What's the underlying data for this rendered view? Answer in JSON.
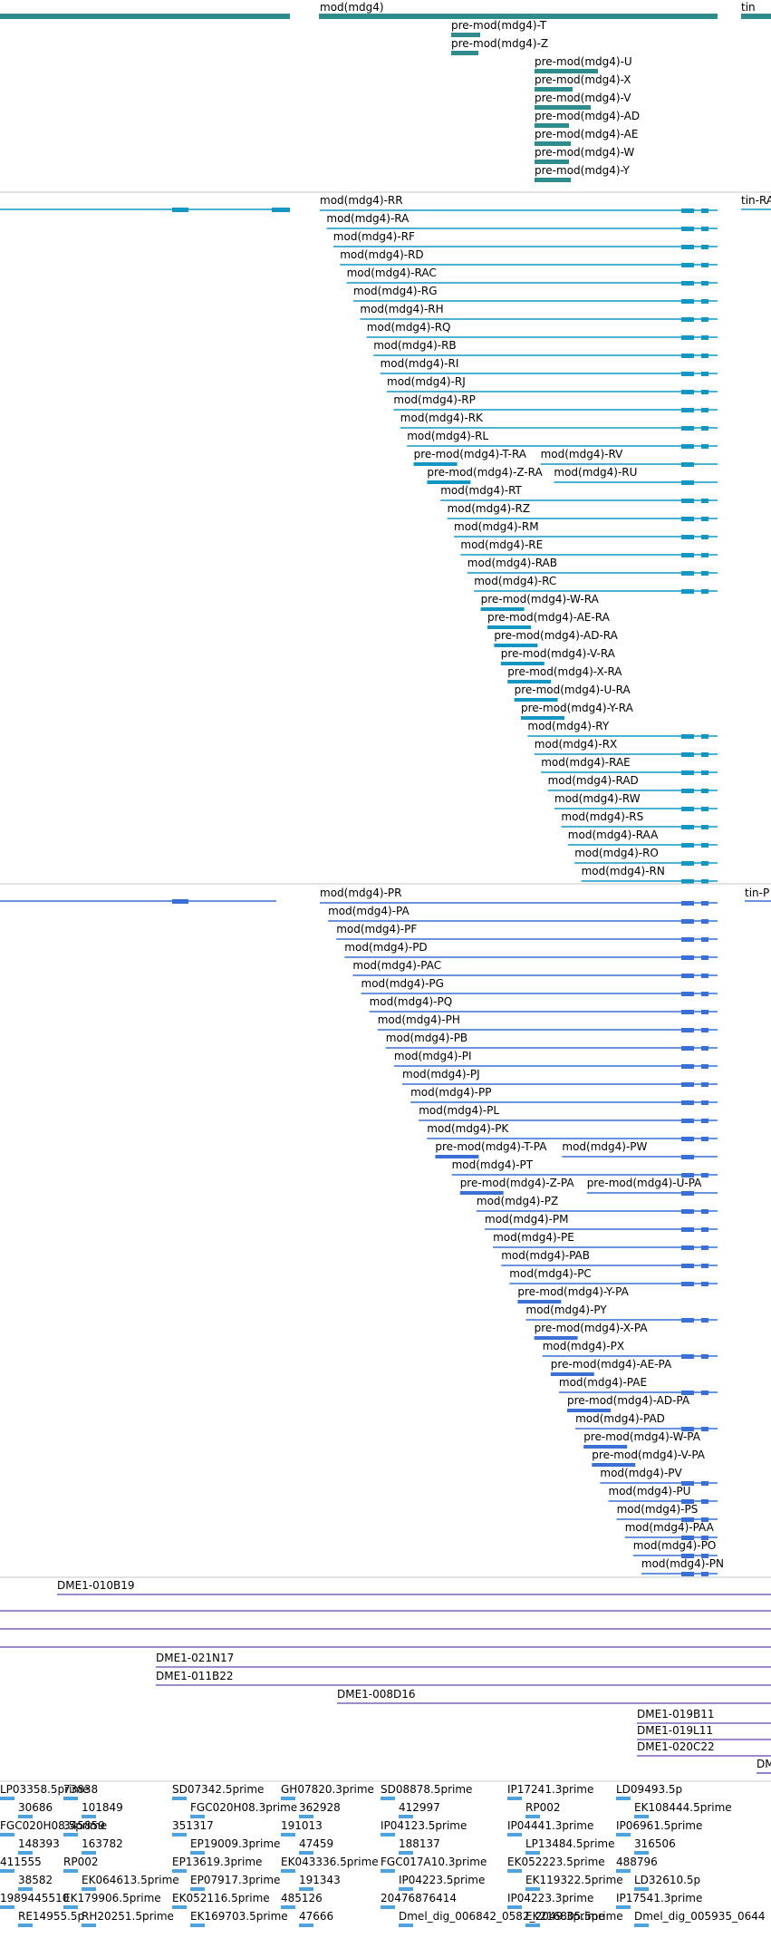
{
  "track_colors": {
    "gene": "#2e8b8e",
    "mrna": "#1297c3",
    "protein": "#3a6fd6",
    "clone": "#7b63b8",
    "est": "#4ea3dc",
    "divider": "#c8c8c8"
  },
  "gene_track": {
    "gene_label": "mod(mdg4)",
    "neighbor_label": "tin",
    "transcripts": [
      "pre-mod(mdg4)-T",
      "pre-mod(mdg4)-Z",
      "pre-mod(mdg4)-U",
      "pre-mod(mdg4)-X",
      "pre-mod(mdg4)-V",
      "pre-mod(mdg4)-AD",
      "pre-mod(mdg4)-AE",
      "pre-mod(mdg4)-W",
      "pre-mod(mdg4)-Y"
    ]
  },
  "mrna_track": {
    "neighbor_label": "tin-RA",
    "labels": [
      "mod(mdg4)-RR",
      "mod(mdg4)-RA",
      "mod(mdg4)-RF",
      "mod(mdg4)-RD",
      "mod(mdg4)-RAC",
      "mod(mdg4)-RG",
      "mod(mdg4)-RH",
      "mod(mdg4)-RQ",
      "mod(mdg4)-RB",
      "mod(mdg4)-RI",
      "mod(mdg4)-RJ",
      "mod(mdg4)-RP",
      "mod(mdg4)-RK",
      "mod(mdg4)-RL",
      "pre-mod(mdg4)-T-RA",
      "mod(mdg4)-RV",
      "pre-mod(mdg4)-Z-RA",
      "mod(mdg4)-RU",
      "mod(mdg4)-RT",
      "mod(mdg4)-RZ",
      "mod(mdg4)-RM",
      "mod(mdg4)-RE",
      "mod(mdg4)-RAB",
      "mod(mdg4)-RC",
      "pre-mod(mdg4)-W-RA",
      "pre-mod(mdg4)-AE-RA",
      "pre-mod(mdg4)-AD-RA",
      "pre-mod(mdg4)-V-RA",
      "pre-mod(mdg4)-X-RA",
      "pre-mod(mdg4)-U-RA",
      "pre-mod(mdg4)-Y-RA",
      "mod(mdg4)-RY",
      "mod(mdg4)-RX",
      "mod(mdg4)-RAE",
      "mod(mdg4)-RAD",
      "mod(mdg4)-RW",
      "mod(mdg4)-RS",
      "mod(mdg4)-RAA",
      "mod(mdg4)-RO",
      "mod(mdg4)-RN"
    ]
  },
  "protein_track": {
    "neighbor_label": "tin-P",
    "labels": [
      "mod(mdg4)-PR",
      "mod(mdg4)-PA",
      "mod(mdg4)-PF",
      "mod(mdg4)-PD",
      "mod(mdg4)-PAC",
      "mod(mdg4)-PG",
      "mod(mdg4)-PQ",
      "mod(mdg4)-PH",
      "mod(mdg4)-PB",
      "mod(mdg4)-PI",
      "mod(mdg4)-PJ",
      "mod(mdg4)-PP",
      "mod(mdg4)-PL",
      "mod(mdg4)-PK",
      "pre-mod(mdg4)-T-PA",
      "mod(mdg4)-PW",
      "mod(mdg4)-PT",
      "pre-mod(mdg4)-Z-PA",
      "pre-mod(mdg4)-U-PA",
      "mod(mdg4)-PZ",
      "mod(mdg4)-PM",
      "mod(mdg4)-PE",
      "mod(mdg4)-PAB",
      "mod(mdg4)-PC",
      "pre-mod(mdg4)-Y-PA",
      "mod(mdg4)-PY",
      "pre-mod(mdg4)-X-PA",
      "mod(mdg4)-PX",
      "pre-mod(mdg4)-AE-PA",
      "mod(mdg4)-PAE",
      "pre-mod(mdg4)-AD-PA",
      "mod(mdg4)-PAD",
      "pre-mod(mdg4)-W-PA",
      "pre-mod(mdg4)-V-PA",
      "mod(mdg4)-PV",
      "mod(mdg4)-PU",
      "mod(mdg4)-PS",
      "mod(mdg4)-PAA",
      "mod(mdg4)-PO",
      "mod(mdg4)-PN"
    ]
  },
  "clone_track": {
    "labels": [
      "DME1-010B19",
      "DME1-021N17",
      "DME1-011B22",
      "DME1-008D16",
      "DME1-019B11",
      "DME1-019L11",
      "DME1-020C22",
      "DM"
    ]
  },
  "est_track": {
    "labels": [
      "LP03358.5prime",
      "73838",
      "SD07342.5prime",
      "GH07820.3prime",
      "SD08878.5prime",
      "IP17241.3prime",
      "LD09493.5p",
      "30686",
      "101849",
      "FGC020H08.3prime",
      "362928",
      "412997",
      "RP002",
      "EK108444.5prime",
      "FGC020H08.5prime",
      "345859",
      "351317",
      "191013",
      "IP04123.5prime",
      "IP04441.3prime",
      "IP06961.5prime",
      "148393",
      "163782",
      "EP19009.3prime",
      "47459",
      "188137",
      "LP13484.5prime",
      "316506",
      "411555",
      "RP002",
      "EP13619.3prime",
      "EK043336.5prime",
      "FGC017A10.3prime",
      "EK052223.5prime",
      "488796",
      "38582",
      "EK064613.5prime",
      "EP07917.3prime",
      "191343",
      "IP04223.5prime",
      "EK119322.5prime",
      "LD32610.5p",
      "1989445510",
      "EK179906.5prime",
      "EK052116.5prime",
      "485126",
      "20476876414",
      "IP04223.3prime",
      "IP17541.3prime",
      "RE14955.5p",
      "RH20251.5prime",
      "EK169703.5prime",
      "47666",
      "Dmel_dig_006842_0582_2049.3prime",
      "EK216805.5prime",
      "Dmel_dig_005935_0644"
    ]
  }
}
